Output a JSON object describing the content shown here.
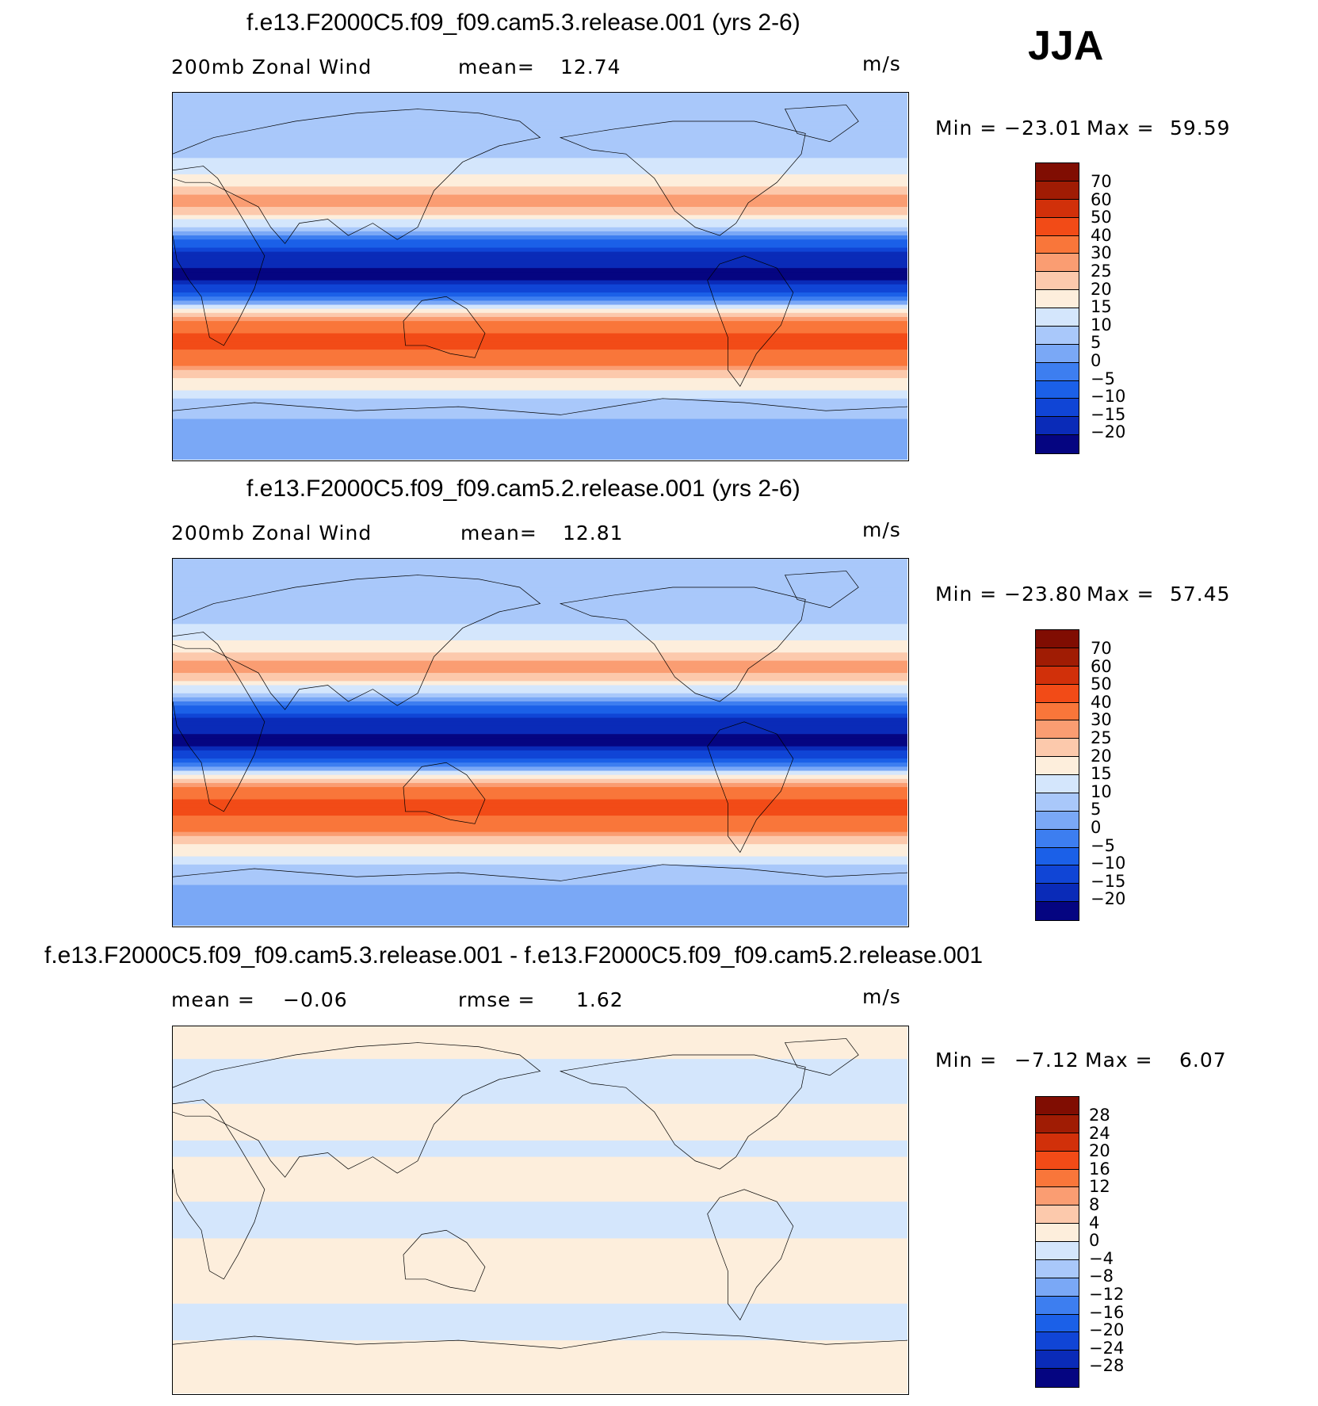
{
  "season": "JJA",
  "colors": {
    "map_14": [
      "#050581",
      "#0a2bb8",
      "#1045d6",
      "#1b60e8",
      "#3d7ef0",
      "#7aa8f6",
      "#a9c8fa",
      "#d4e6fc",
      "#fdeedc",
      "#fcc9ac",
      "#fa9d72",
      "#f9763a",
      "#f24b17",
      "#d1300a",
      "#a01c04",
      "#800d02"
    ],
    "land": "#000000"
  },
  "chart_data": [
    {
      "type": "heatmap",
      "title": "f.e13.F2000C5.f09_f09.cam5.3.release.001 (yrs 2-6)",
      "variable": "200mb Zonal Wind",
      "stat1_label": "mean=",
      "stat1_value": "12.74",
      "units": "m/s",
      "min_label": "Min  =",
      "min_value": "−23.01",
      "max_label": "Max  =",
      "max_value": "59.59",
      "colorbar_levels": [
        "70",
        "60",
        "50",
        "40",
        "30",
        "25",
        "20",
        "15",
        "10",
        "5",
        "0",
        "−5",
        "−10",
        "−15",
        "−20"
      ],
      "lat_profile_deg": [
        90,
        60,
        45,
        38,
        30,
        20,
        10,
        0,
        -10,
        -20,
        -30,
        -40,
        -50,
        -60,
        -70,
        -90
      ],
      "lat_profile_value": [
        5,
        8,
        18,
        30,
        20,
        0,
        -18,
        -22,
        -5,
        25,
        45,
        35,
        20,
        10,
        5,
        0
      ]
    },
    {
      "type": "heatmap",
      "title": "f.e13.F2000C5.f09_f09.cam5.2.release.001 (yrs 2-6)",
      "variable": "200mb Zonal Wind",
      "stat1_label": "mean=",
      "stat1_value": "12.81",
      "units": "m/s",
      "min_label": "Min  =",
      "min_value": "−23.80",
      "max_label": "Max  =",
      "max_value": "57.45",
      "colorbar_levels": [
        "70",
        "60",
        "50",
        "40",
        "30",
        "25",
        "20",
        "15",
        "10",
        "5",
        "0",
        "−5",
        "−10",
        "−15",
        "−20"
      ],
      "lat_profile_deg": [
        90,
        60,
        45,
        38,
        30,
        20,
        10,
        0,
        -10,
        -20,
        -30,
        -40,
        -50,
        -60,
        -70,
        -90
      ],
      "lat_profile_value": [
        5,
        8,
        18,
        30,
        20,
        0,
        -18,
        -22,
        -5,
        25,
        45,
        35,
        20,
        10,
        5,
        0
      ]
    },
    {
      "type": "heatmap",
      "title": "f.e13.F2000C5.f09_f09.cam5.3.release.001 - f.e13.F2000C5.f09_f09.cam5.2.release.001",
      "stat1_label": "mean =",
      "stat1_value": "−0.06",
      "stat2_label": "rmse =",
      "stat2_value": "1.62",
      "units": "m/s",
      "min_label": "Min  =",
      "min_value": "−7.12",
      "max_label": "Max  =",
      "max_value": "6.07",
      "colorbar_levels": [
        "28",
        "24",
        "20",
        "16",
        "12",
        "8",
        "4",
        "0",
        "−4",
        "−8",
        "−12",
        "−16",
        "−20",
        "−24",
        "−28"
      ],
      "lat_profile_deg": [
        90,
        60,
        45,
        38,
        30,
        20,
        10,
        0,
        -10,
        -20,
        -30,
        -40,
        -50,
        -60,
        -70,
        -90
      ],
      "lat_profile_value": [
        1,
        -1,
        1,
        1,
        -1,
        1,
        1,
        -1,
        -1,
        1,
        1,
        1,
        -1,
        -1,
        1,
        0
      ]
    }
  ]
}
